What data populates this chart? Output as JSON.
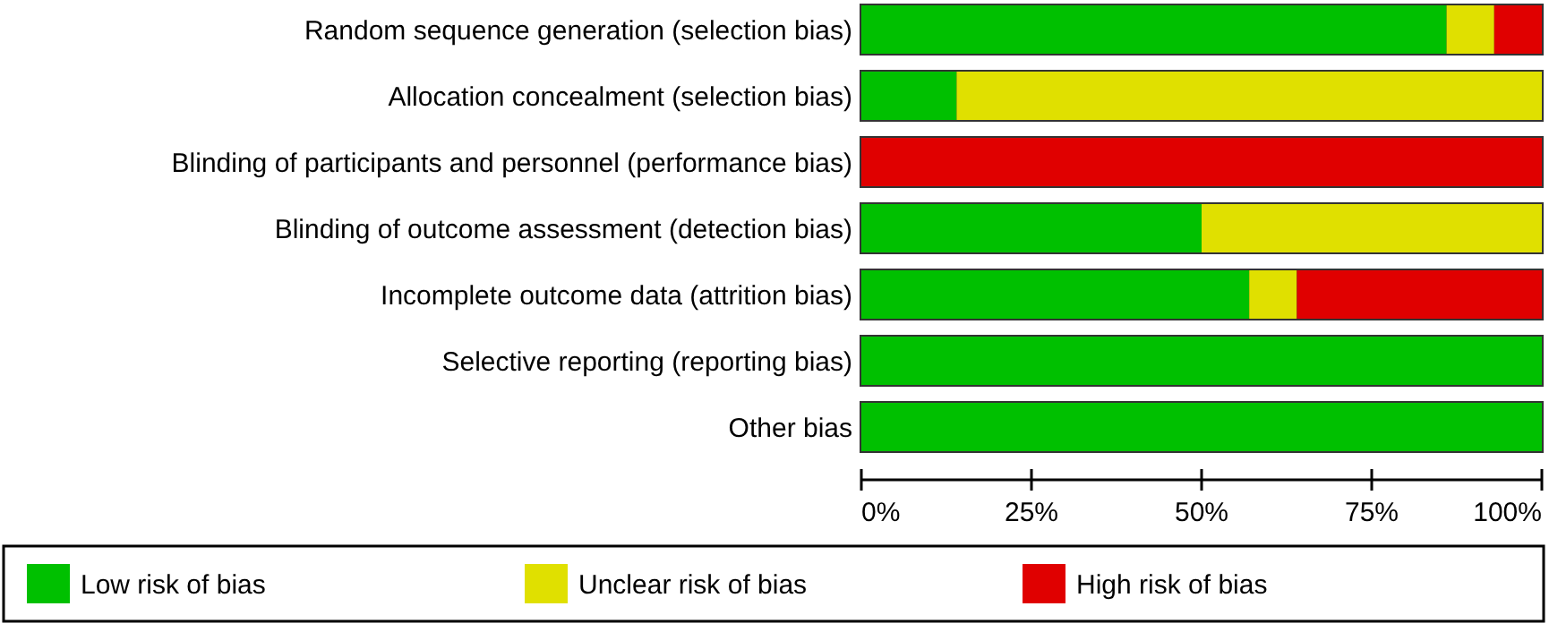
{
  "chart_data": {
    "type": "bar",
    "orientation": "horizontal",
    "stacked": true,
    "categories": [
      "Random sequence generation (selection bias)",
      "Allocation concealment (selection bias)",
      "Blinding of participants and personnel (performance bias)",
      "Blinding of outcome assessment (detection bias)",
      "Incomplete outcome data (attrition bias)",
      "Selective reporting (reporting bias)",
      "Other bias"
    ],
    "series": [
      {
        "name": "Low risk of bias",
        "color": "#00c000",
        "values": [
          86,
          14,
          0,
          50,
          57,
          100,
          100
        ]
      },
      {
        "name": "Unclear risk of bias",
        "color": "#e0e000",
        "values": [
          7,
          86,
          0,
          50,
          7,
          0,
          0
        ]
      },
      {
        "name": "High risk of bias",
        "color": "#e00000",
        "values": [
          7,
          0,
          100,
          0,
          36,
          0,
          0
        ]
      }
    ],
    "xlim": [
      0,
      100
    ],
    "xticks": [
      {
        "value": 0,
        "label": "0%"
      },
      {
        "value": 25,
        "label": "25%"
      },
      {
        "value": 50,
        "label": "50%"
      },
      {
        "value": 75,
        "label": "75%"
      },
      {
        "value": 100,
        "label": "100%"
      }
    ],
    "legend": "bottom",
    "grid": false
  }
}
